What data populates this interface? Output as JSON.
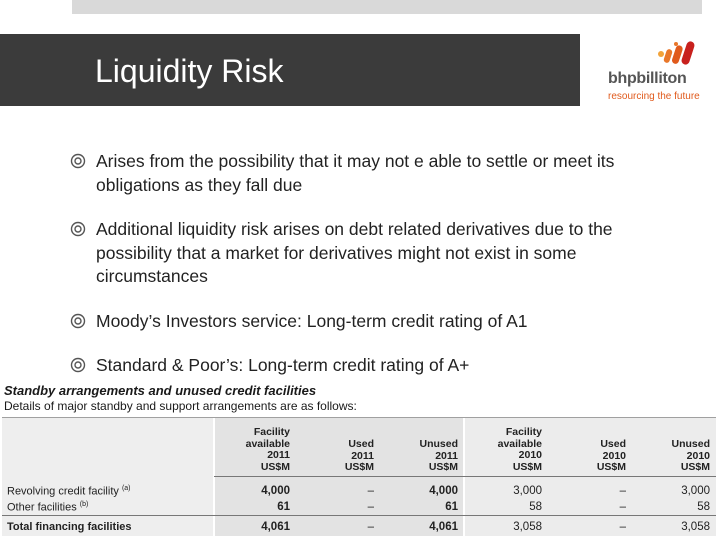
{
  "slide": {
    "title": "Liquidity Risk"
  },
  "logo": {
    "name": "bhpbilliton",
    "tagline": "resourcing the future",
    "brand_color": "#e05a1c"
  },
  "bullets": [
    "Arises from the possibility that it may not e able to settle or meet its obligations as they fall due",
    "Additional liquidity risk arises on debt related derivatives due to the possibility that a market for derivatives might not exist in some circumstances",
    "Moody’s Investors service: Long-term credit rating of A1",
    "Standard & Poor’s: Long-term credit rating of A+"
  ],
  "table": {
    "title": "Standby arrangements and unused credit facilities",
    "subtitle": "Details of major standby and support arrangements are as follows:",
    "headers": [
      "Facility\navailable\n2011\nUS$M",
      "Used\n2011\nUS$M",
      "Unused\n2011\nUS$M",
      "Facility\navailable\n2010\nUS$M",
      "Used\n2010\nUS$M",
      "Unused\n2010\nUS$M"
    ],
    "rows": [
      {
        "label": "Revolving credit facility",
        "note": "(a)",
        "values": [
          "4,000",
          "–",
          "4,000",
          "3,000",
          "–",
          "3,000"
        ]
      },
      {
        "label": "Other facilities",
        "note": "(b)",
        "values": [
          "61",
          "–",
          "61",
          "58",
          "–",
          "58"
        ]
      },
      {
        "label": "Total financing facilities",
        "note": "",
        "values": [
          "4,061",
          "–",
          "4,061",
          "3,058",
          "–",
          "3,058"
        ]
      }
    ]
  }
}
